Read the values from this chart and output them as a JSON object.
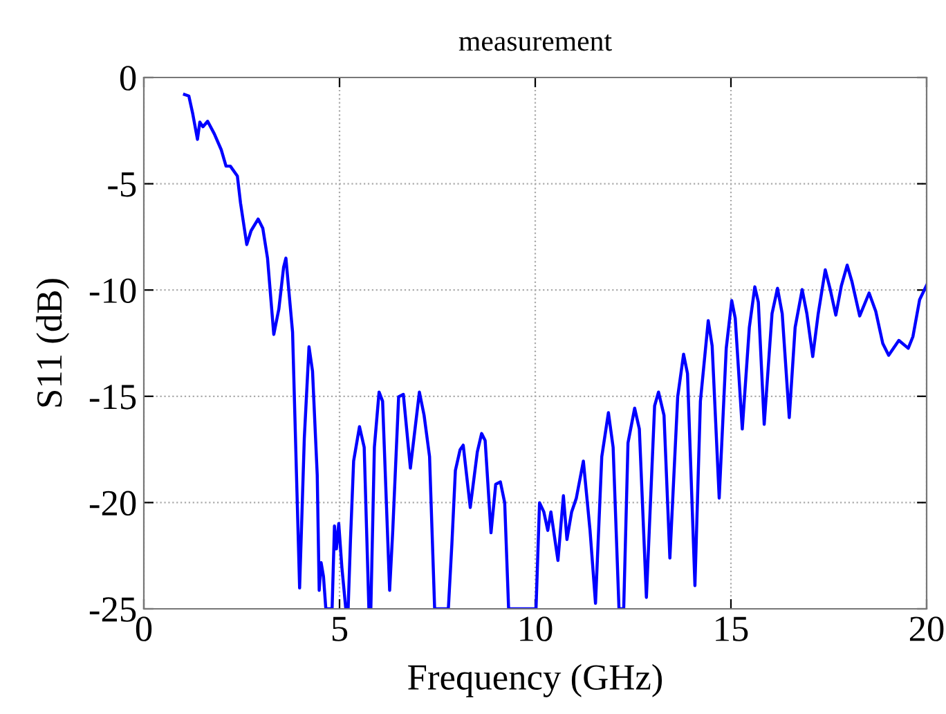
{
  "chart_data": {
    "type": "line",
    "title": "measurement",
    "xlabel": "Frequency (GHz)",
    "ylabel": "S11 (dB)",
    "xlim": [
      0,
      20
    ],
    "ylim": [
      -25,
      0
    ],
    "xticks": [
      0,
      5,
      10,
      15,
      20
    ],
    "yticks": [
      0,
      -5,
      -10,
      -15,
      -20,
      -25
    ],
    "grid": true,
    "line_style": "solid",
    "marker": "none",
    "series": [
      {
        "color": "#0000ff",
        "x": [
          1.04,
          1.15,
          1.25,
          1.37,
          1.43,
          1.51,
          1.63,
          1.8,
          1.98,
          2.1,
          2.21,
          2.39,
          2.47,
          2.63,
          2.74,
          2.92,
          3.04,
          3.16,
          3.32,
          3.45,
          3.57,
          3.63,
          3.8,
          3.98,
          4.1,
          4.22,
          4.31,
          4.43,
          4.48,
          4.53,
          4.59,
          4.65,
          4.81,
          4.87,
          4.92,
          4.98,
          5.06,
          5.16,
          5.22,
          5.28,
          5.36,
          5.51,
          5.63,
          5.75,
          5.8,
          5.89,
          6.01,
          6.1,
          6.28,
          6.36,
          6.51,
          6.63,
          6.81,
          7.04,
          7.16,
          7.3,
          7.43,
          7.78,
          7.87,
          7.96,
          8.08,
          8.16,
          8.34,
          8.52,
          8.63,
          8.72,
          8.87,
          8.99,
          9.11,
          9.22,
          9.32,
          10.02,
          10.11,
          10.22,
          10.32,
          10.4,
          10.58,
          10.72,
          10.81,
          10.93,
          11.05,
          11.23,
          11.4,
          11.54,
          11.7,
          11.87,
          11.99,
          12.14,
          12.26,
          12.37,
          12.54,
          12.66,
          12.84,
          13.05,
          13.15,
          13.29,
          13.44,
          13.64,
          13.79,
          13.89,
          14.08,
          14.22,
          14.42,
          14.52,
          14.7,
          14.88,
          15.02,
          15.11,
          15.29,
          15.47,
          15.61,
          15.7,
          15.85,
          16.05,
          16.19,
          16.31,
          16.49,
          16.64,
          16.82,
          16.94,
          17.09,
          17.23,
          17.41,
          17.53,
          17.68,
          17.82,
          17.97,
          18.09,
          18.29,
          18.53,
          18.7,
          18.88,
          19.03,
          19.29,
          19.53,
          19.65,
          19.82,
          20.0
        ],
        "values": [
          -0.8,
          -0.87,
          -1.71,
          -2.91,
          -2.1,
          -2.32,
          -2.06,
          -2.65,
          -3.41,
          -4.17,
          -4.17,
          -4.64,
          -5.9,
          -7.86,
          -7.21,
          -6.66,
          -7.1,
          -8.5,
          -12.09,
          -10.89,
          -8.94,
          -8.5,
          -11.98,
          -24.02,
          -16.97,
          -12.67,
          -13.82,
          -18.7,
          -24.13,
          -22.83,
          -23.48,
          -25,
          -25,
          -21.1,
          -22.18,
          -20.99,
          -23.05,
          -25,
          -25,
          -21.74,
          -18.05,
          -16.43,
          -17.4,
          -25,
          -25,
          -17.4,
          -14.8,
          -15.23,
          -24.13,
          -21.31,
          -15.02,
          -14.91,
          -18.38,
          -14.8,
          -15.89,
          -17.84,
          -25,
          -25,
          -21.96,
          -18.49,
          -17.51,
          -17.3,
          -20.23,
          -17.62,
          -16.75,
          -17.08,
          -21.42,
          -19.14,
          -19.03,
          -20.01,
          -25,
          -25,
          -20.01,
          -20.44,
          -21.31,
          -20.44,
          -22.72,
          -19.68,
          -21.74,
          -20.44,
          -19.79,
          -18.05,
          -21.31,
          -24.74,
          -17.84,
          -15.77,
          -17.4,
          -25,
          -25,
          -17.19,
          -15.56,
          -16.54,
          -24.46,
          -15.45,
          -14.8,
          -15.89,
          -22.61,
          -15.02,
          -13.02,
          -13.93,
          -23.91,
          -15.23,
          -11.44,
          -12.63,
          -19.79,
          -12.74,
          -10.5,
          -11.33,
          -16.54,
          -11.76,
          -9.85,
          -10.57,
          -16.32,
          -11.11,
          -9.92,
          -11.11,
          -16.0,
          -11.76,
          -9.98,
          -11.11,
          -13.13,
          -11.11,
          -9.05,
          -9.92,
          -11.18,
          -9.81,
          -8.83,
          -9.59,
          -11.22,
          -10.14,
          -11.0,
          -12.52,
          -13.07,
          -12.37,
          -12.74,
          -12.19,
          -10.46,
          -9.77
        ]
      }
    ]
  }
}
